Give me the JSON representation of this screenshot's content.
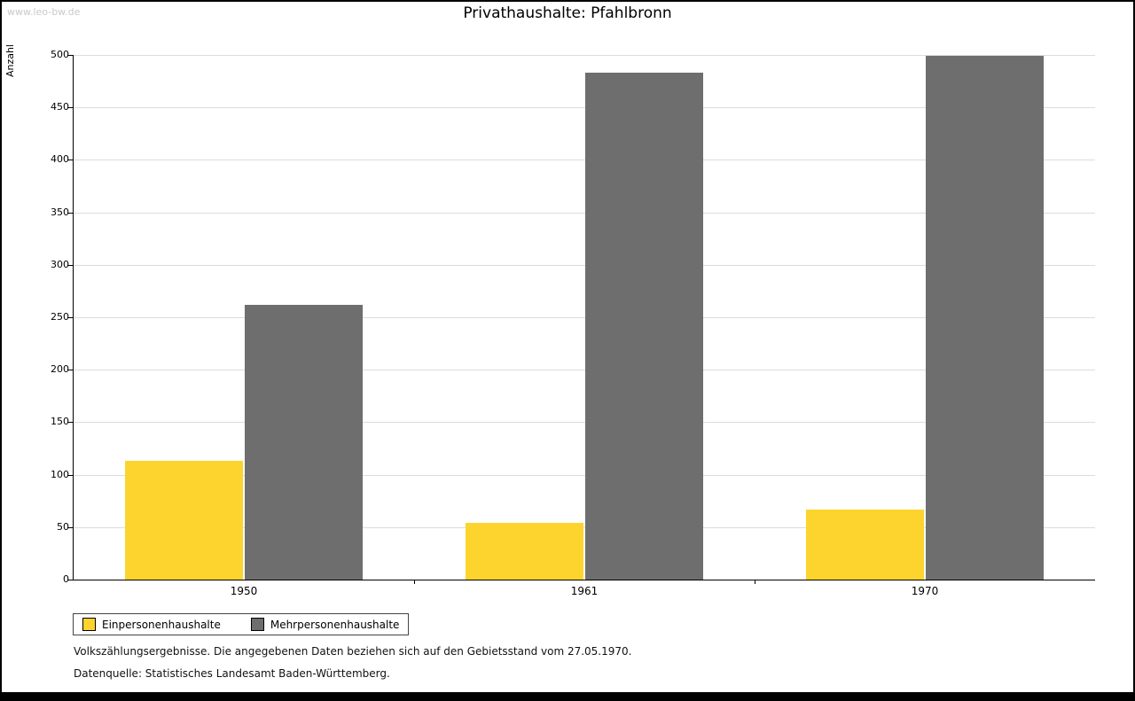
{
  "page": {
    "watermark": "www.leo-bw.de",
    "title": "Privathaushalte: Pfahlbronn",
    "footnote1": "Volkszählungsergebnisse. Die angegebenen Daten beziehen sich auf den Gebietsstand vom 27.05.1970.",
    "footnote2": "Datenquelle: Statistisches Landesamt Baden-Württemberg."
  },
  "chart_data": {
    "type": "bar",
    "title": "Privathaushalte: Pfahlbronn",
    "xlabel": "",
    "ylabel": "Anzahl",
    "categories": [
      "1950",
      "1961",
      "1970"
    ],
    "series": [
      {
        "name": "Einpersonenhaushalte",
        "color": "#fcd42d",
        "values": [
          113,
          54,
          67
        ]
      },
      {
        "name": "Mehrpersonenhaushalte",
        "color": "#6e6e6e",
        "values": [
          262,
          483,
          499
        ]
      }
    ],
    "ylim": [
      0,
      500
    ],
    "ytick_step": 50,
    "grid": true,
    "legend_position": "bottom-left"
  }
}
